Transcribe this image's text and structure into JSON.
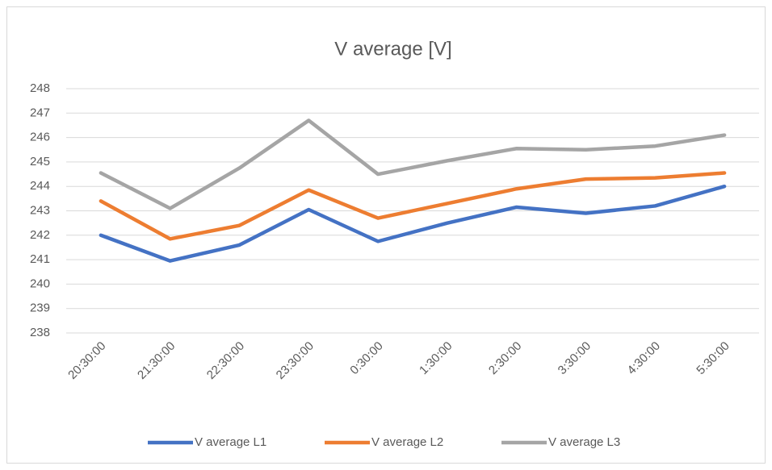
{
  "chart_data": {
    "type": "line",
    "title": "V average [V]",
    "categories": [
      "20:30:00",
      "21:30:00",
      "22:30:00",
      "23:30:00",
      "0:30:00",
      "1:30:00",
      "2:30:00",
      "3:30:00",
      "4:30:00",
      "5:30:00"
    ],
    "series": [
      {
        "name": "V average L1",
        "color": "#4472c4",
        "values": [
          242.0,
          240.95,
          241.6,
          243.05,
          241.75,
          242.5,
          243.15,
          242.9,
          243.2,
          244.0
        ]
      },
      {
        "name": "V average L2",
        "color": "#ed7d31",
        "values": [
          243.4,
          241.85,
          242.4,
          243.85,
          242.7,
          243.3,
          243.9,
          244.3,
          244.35,
          244.55
        ]
      },
      {
        "name": "V average L3",
        "color": "#a5a5a5",
        "values": [
          244.55,
          243.1,
          244.75,
          246.7,
          244.5,
          245.05,
          245.55,
          245.5,
          245.65,
          246.1
        ]
      }
    ],
    "ylim": [
      238,
      248
    ],
    "yticks": [
      238,
      239,
      240,
      241,
      242,
      243,
      244,
      245,
      246,
      247,
      248
    ],
    "grid": true,
    "legend": "bottom"
  }
}
